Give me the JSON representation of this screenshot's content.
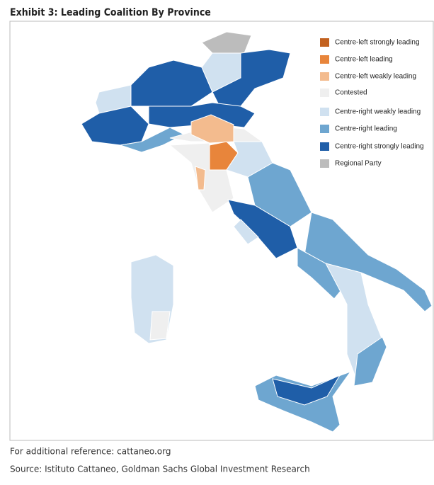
{
  "header": {
    "title": "Exhibit 3: Leading Coalition By Province"
  },
  "legend": {
    "items": [
      {
        "label": "Centre-left strongly leading",
        "color": "#c2611f"
      },
      {
        "label": "Centre-left leading",
        "color": "#e8853b"
      },
      {
        "label": "Centre-left weakly leading",
        "color": "#f3bb8e"
      },
      {
        "label": "Contested",
        "color": "#efefef"
      },
      {
        "label": "Centre-right weakly leading",
        "color": "#d0e1f0"
      },
      {
        "label": "Centre-right leading",
        "color": "#6ea6d0"
      },
      {
        "label": "Centre-right strongly leading",
        "color": "#1f5ea8"
      },
      {
        "label": "Regional Party",
        "color": "#bcbcbc"
      }
    ]
  },
  "footer": {
    "lines": [
      "For additional reference: cattaneo.org",
      "Source: Istituto Cattaneo, Goldman Sachs Global Investment Research"
    ]
  }
}
